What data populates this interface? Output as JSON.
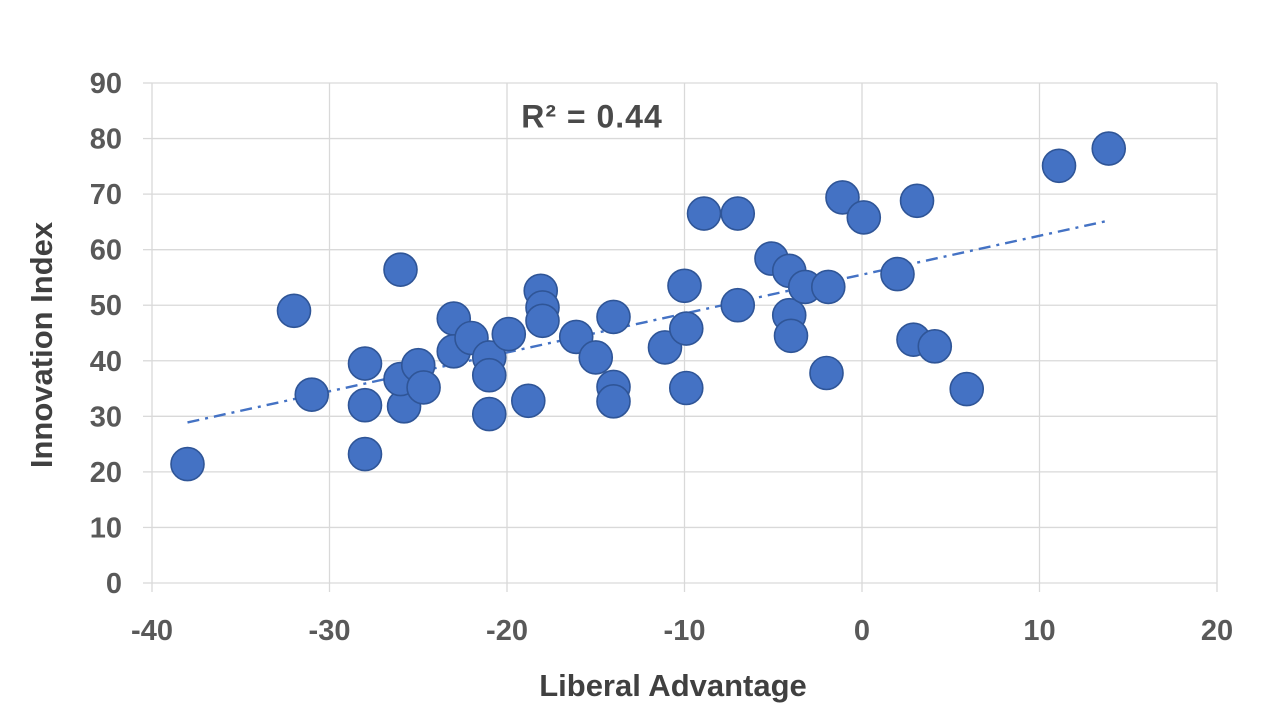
{
  "chart_data": {
    "type": "scatter",
    "title": "",
    "xlabel": "Liberal Advantage",
    "ylabel": "Innovation Index",
    "annotation": "R² = 0.44",
    "xlim": [
      -40,
      20
    ],
    "ylim": [
      0,
      90
    ],
    "x_ticks": [
      -40,
      -30,
      -20,
      -10,
      0,
      10,
      20
    ],
    "y_ticks": [
      0,
      10,
      20,
      30,
      40,
      50,
      60,
      70,
      80,
      90
    ],
    "grid": true,
    "legend": "none",
    "colors": {
      "marker_fill": "#4472C4",
      "marker_edge": "#2F5597",
      "trendline": "#4472C4",
      "gridline": "#D9D9D9",
      "tick_text": "#595959",
      "title_text": "#404040"
    },
    "trendline": {
      "style": "dash-dot",
      "x1": -38,
      "y1": 28.9,
      "x2": 14,
      "y2": 65.3
    },
    "points": [
      [
        -38,
        21.4
      ],
      [
        -32,
        49
      ],
      [
        -31,
        33.9
      ],
      [
        -28,
        39.5
      ],
      [
        -28,
        32
      ],
      [
        -25.8,
        31.8
      ],
      [
        -28,
        23.2
      ],
      [
        -26,
        56.4
      ],
      [
        -26,
        36.7
      ],
      [
        -25,
        39.2
      ],
      [
        -24.7,
        35.2
      ],
      [
        -23,
        47.6
      ],
      [
        -23,
        41.7
      ],
      [
        -22,
        44.1
      ],
      [
        -21,
        40.6
      ],
      [
        -21,
        37.4
      ],
      [
        -21,
        30.4
      ],
      [
        -19.9,
        44.8
      ],
      [
        -18.8,
        32.8
      ],
      [
        -18.1,
        52.6
      ],
      [
        -18,
        49.6
      ],
      [
        -18,
        47.2
      ],
      [
        -16.1,
        44.3
      ],
      [
        -15,
        40.6
      ],
      [
        -14,
        47.9
      ],
      [
        -14,
        35.3
      ],
      [
        -14,
        32.7
      ],
      [
        -11.1,
        42.4
      ],
      [
        -10,
        53.5
      ],
      [
        -9.9,
        45.8
      ],
      [
        -9.9,
        35.1
      ],
      [
        -8.9,
        66.5
      ],
      [
        -7,
        66.5
      ],
      [
        -7,
        50
      ],
      [
        -5.1,
        58.4
      ],
      [
        -4.1,
        56.2
      ],
      [
        -4.1,
        48.2
      ],
      [
        -4,
        44.5
      ],
      [
        -3.2,
        53.3
      ],
      [
        -1.9,
        53.3
      ],
      [
        -2,
        37.8
      ],
      [
        -1.1,
        69.4
      ],
      [
        0.1,
        65.8
      ],
      [
        2,
        55.6
      ],
      [
        3.1,
        68.8
      ],
      [
        2.9,
        43.8
      ],
      [
        4.1,
        42.6
      ],
      [
        5.9,
        34.9
      ],
      [
        11.1,
        75.1
      ],
      [
        13.9,
        78.2
      ]
    ]
  }
}
